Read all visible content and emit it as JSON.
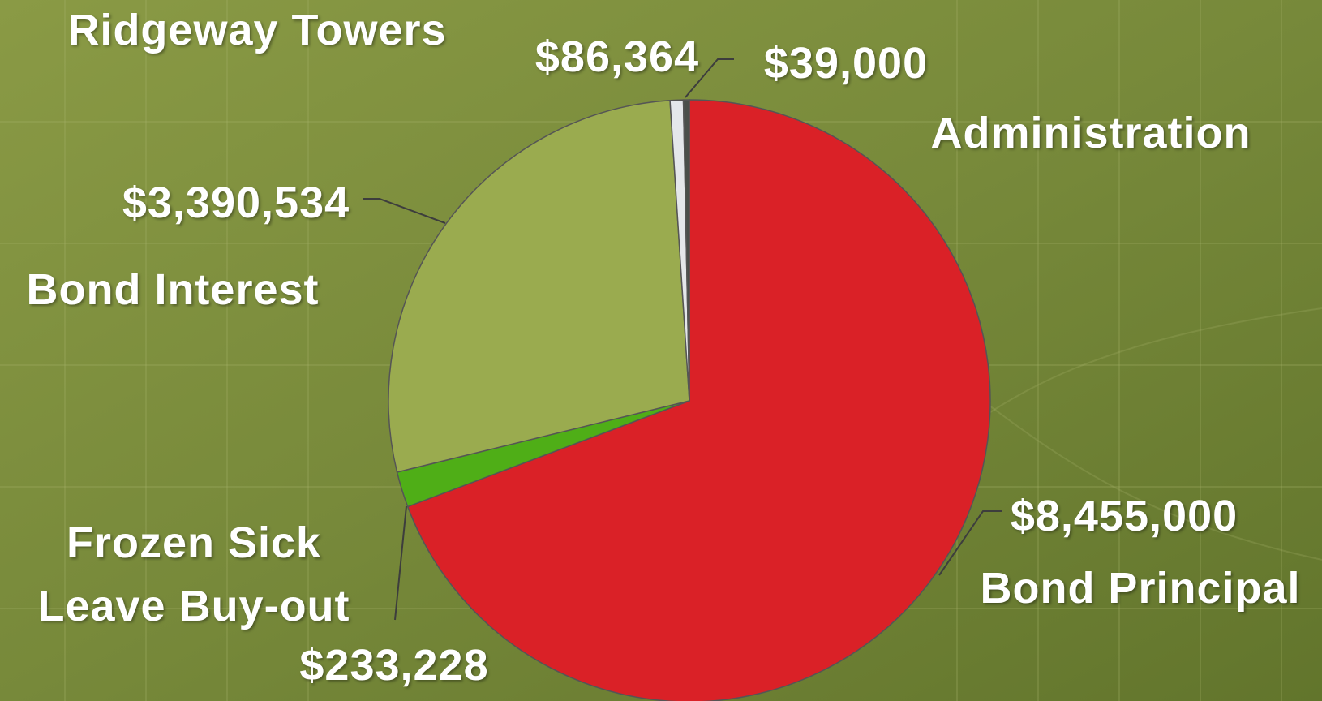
{
  "chart_data": {
    "type": "pie",
    "categories": [
      "Bond Principal",
      "Frozen Sick Leave Buy-out",
      "Bond Interest",
      "Ridgeway Towers",
      "Administration"
    ],
    "values": [
      8455000,
      233228,
      3390534,
      86364,
      39000
    ],
    "value_labels": [
      "$8,455,000",
      "$233,228",
      "$3,390,534",
      "$86,364",
      "$39,000"
    ],
    "colors": [
      "#da2127",
      "#4fae17",
      "#9aab4f",
      "#e4e7ea",
      "#4a4f4a"
    ]
  }
}
